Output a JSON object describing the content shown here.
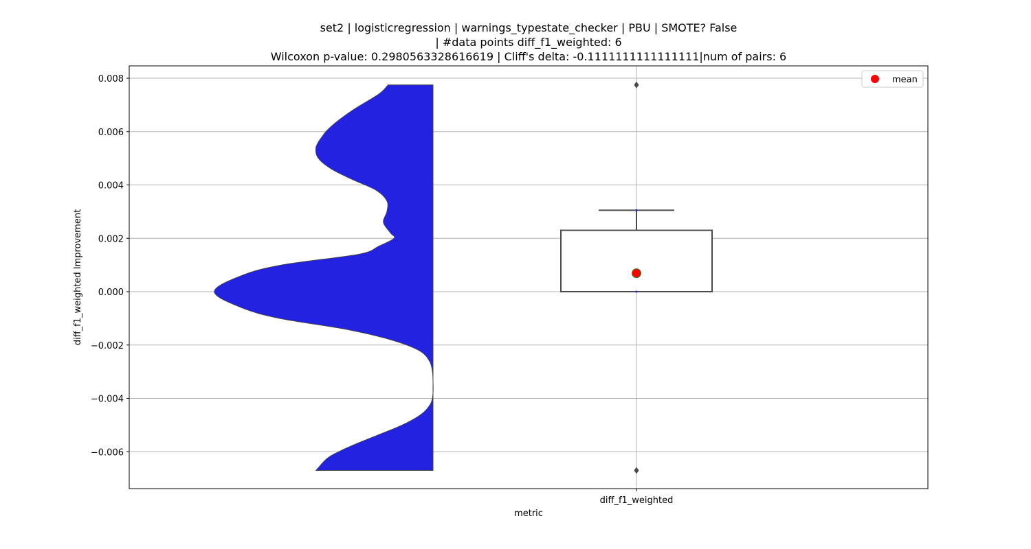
{
  "chart_data": {
    "type": "violin+box",
    "title_lines": [
      "set2 | logisticregression | warnings_typestate_checker | PBU | SMOTE? False",
      "| #data points diff_f1_weighted: 6",
      "Wilcoxon p-value: 0.2980563328616619 | Cliff's delta: -0.1111111111111111|num of pairs: 6"
    ],
    "xlabel": "metric",
    "ylabel": "diff_f1_weighted Improvement",
    "categories": [
      "diff_f1_weighted"
    ],
    "ylim": [
      -0.0074,
      0.0084
    ],
    "y_ticks": [
      -0.006,
      -0.004,
      -0.002,
      0.0,
      0.002,
      0.004,
      0.006,
      0.008
    ],
    "y_tick_labels": [
      "−0.006",
      "−0.004",
      "−0.002",
      "0.000",
      "0.002",
      "0.004",
      "0.006",
      "0.008"
    ],
    "grid": true,
    "legend": {
      "placement": "top-right",
      "entries": [
        {
          "label": "mean",
          "color": "#ff0000"
        }
      ]
    },
    "violin": {
      "color": "#2222e0",
      "range": [
        -0.0067,
        0.00775
      ],
      "density_profile": [
        {
          "y": 0.00775,
          "w": 0.38
        },
        {
          "y": 0.0074,
          "w": 0.46
        },
        {
          "y": 0.0068,
          "w": 0.68
        },
        {
          "y": 0.0062,
          "w": 0.86
        },
        {
          "y": 0.0058,
          "w": 0.94
        },
        {
          "y": 0.0054,
          "w": 0.99
        },
        {
          "y": 0.005,
          "w": 0.97
        },
        {
          "y": 0.0046,
          "w": 0.86
        },
        {
          "y": 0.0042,
          "w": 0.68
        },
        {
          "y": 0.0038,
          "w": 0.48
        },
        {
          "y": 0.0034,
          "w": 0.39
        },
        {
          "y": 0.003,
          "w": 0.39
        },
        {
          "y": 0.0026,
          "w": 0.42
        },
        {
          "y": 0.0022,
          "w": 0.36
        },
        {
          "y": 0.002,
          "w": 0.33
        },
        {
          "y": 0.0017,
          "w": 0.46
        },
        {
          "y": 0.0014,
          "w": 0.63
        },
        {
          "y": 0.001,
          "w": 1.28
        },
        {
          "y": 0.0006,
          "w": 1.62
        },
        {
          "y": 0.0,
          "w": 1.85
        },
        {
          "y": -0.0006,
          "w": 1.62
        },
        {
          "y": -0.001,
          "w": 1.3
        },
        {
          "y": -0.0014,
          "w": 0.75
        },
        {
          "y": -0.0018,
          "w": 0.36
        },
        {
          "y": -0.0022,
          "w": 0.12
        },
        {
          "y": -0.0026,
          "w": 0.03
        },
        {
          "y": -0.003,
          "w": 0.005
        },
        {
          "y": -0.0034,
          "w": 0.0
        },
        {
          "y": -0.0038,
          "w": 0.0
        },
        {
          "y": -0.0042,
          "w": 0.02
        },
        {
          "y": -0.0046,
          "w": 0.1
        },
        {
          "y": -0.005,
          "w": 0.26
        },
        {
          "y": -0.0054,
          "w": 0.48
        },
        {
          "y": -0.0058,
          "w": 0.7
        },
        {
          "y": -0.0062,
          "w": 0.88
        },
        {
          "y": -0.0066,
          "w": 0.97
        },
        {
          "y": -0.0067,
          "w": 0.99
        }
      ]
    },
    "box": {
      "category": "diff_f1_weighted",
      "q1": 0.0,
      "median": 0.0,
      "q3": 0.0023,
      "whisker_low": 0.0,
      "whisker_high": 0.00305,
      "outliers": [
        0.00775,
        -0.0067
      ],
      "mean": 0.00069
    }
  }
}
